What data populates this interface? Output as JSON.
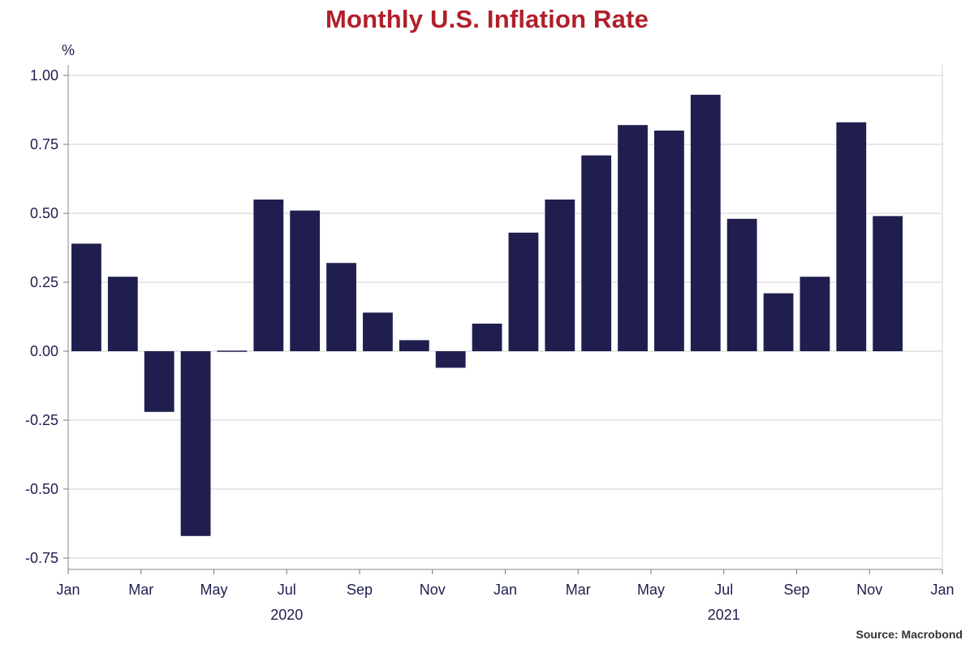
{
  "chart_data": {
    "type": "bar",
    "title": "Monthly U.S. Inflation Rate",
    "ylabel": "%",
    "ylim": [
      -0.8,
      1.05
    ],
    "yticks": [
      "1.00",
      "0.75",
      "0.50",
      "0.25",
      "0.00",
      "-0.25",
      "-0.50",
      "-0.75"
    ],
    "ytick_values": [
      1.0,
      0.75,
      0.5,
      0.25,
      0.0,
      -0.25,
      -0.5,
      -0.75
    ],
    "xticks": [
      "Jan",
      "Mar",
      "May",
      "Jul",
      "Sep",
      "Nov",
      "Jan",
      "Mar",
      "May",
      "Jul",
      "Sep",
      "Nov",
      "Jan"
    ],
    "years": [
      "2020",
      "2021"
    ],
    "categories": [
      "2020-01",
      "2020-02",
      "2020-03",
      "2020-04",
      "2020-05",
      "2020-06",
      "2020-07",
      "2020-08",
      "2020-09",
      "2020-10",
      "2020-11",
      "2020-12",
      "2021-01",
      "2021-02",
      "2021-03",
      "2021-04",
      "2021-05",
      "2021-06",
      "2021-07",
      "2021-08",
      "2021-09",
      "2021-10",
      "2021-11"
    ],
    "values": [
      0.39,
      0.27,
      -0.22,
      -0.67,
      0.0,
      0.55,
      0.51,
      0.32,
      0.14,
      0.04,
      -0.06,
      0.1,
      0.43,
      0.55,
      0.71,
      0.82,
      0.8,
      0.93,
      0.48,
      0.21,
      0.27,
      0.83,
      0.49
    ],
    "grid": true,
    "bar_color": "#1f1e4e",
    "source": "Source: Macrobond"
  }
}
